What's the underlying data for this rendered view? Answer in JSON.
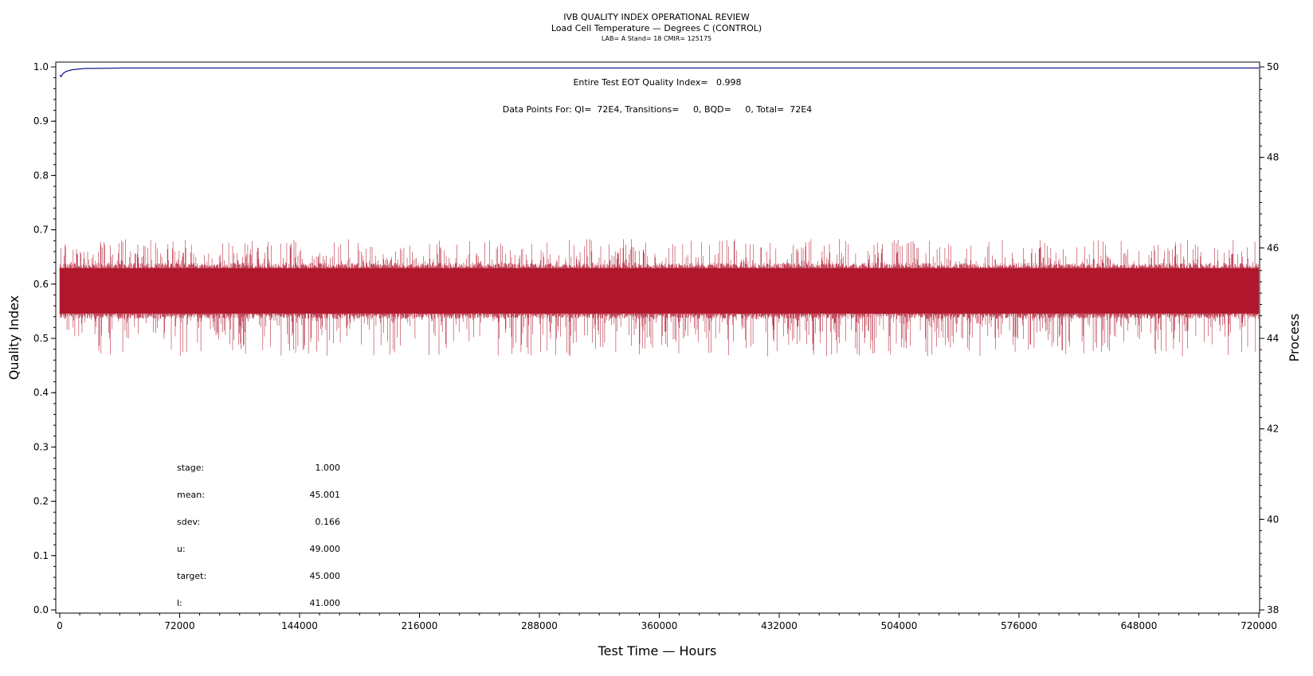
{
  "chart_data": {
    "type": "line",
    "title": "IVB QUALITY INDEX OPERATIONAL REVIEW",
    "subtitle": "Load Cell Temperature — Degrees C (CONTROL)",
    "subtitle2": "LAB= A Stand= 18 CMIR= 125175",
    "xlabel": "Test Time — Hours",
    "ylabel": "Quality Index",
    "y2label": "Process",
    "xlim": [
      0,
      720000
    ],
    "ylim": [
      0,
      1.0
    ],
    "y2lim": [
      38,
      50
    ],
    "x_ticks": [
      "0",
      "72000",
      "144000",
      "216000",
      "288000",
      "360000",
      "432000",
      "504000",
      "576000",
      "648000",
      "720000"
    ],
    "y_ticks": [
      "0.0",
      "0.1",
      "0.2",
      "0.3",
      "0.4",
      "0.5",
      "0.6",
      "0.7",
      "0.8",
      "0.9",
      "1.0"
    ],
    "y2_ticks": [
      "38",
      "40",
      "42",
      "44",
      "46",
      "48",
      "50"
    ],
    "grid": false,
    "series": [
      {
        "axis": "left",
        "color": "#1a1a8c",
        "x": [
          0,
          800,
          2000,
          4000,
          8000,
          15000,
          40000,
          100000,
          720000
        ],
        "y": [
          0.985,
          0.982,
          0.988,
          0.992,
          0.995,
          0.997,
          0.998,
          0.998,
          0.998
        ]
      },
      {
        "axis": "right",
        "color": "#b0172d",
        "style": "dense process trace",
        "center": 45.0,
        "band_low": 44.55,
        "band_high": 45.55,
        "spike_min": 43.6,
        "spike_max": 46.2,
        "x_range": [
          0,
          720000
        ]
      }
    ],
    "annotations": {
      "quality_index": "Entire Test EOT Quality Index=   0.998",
      "data_points": "Data Points For: QI=  72E4, Transitions=     0, BQD=     0, Total=  72E4"
    },
    "stats": [
      {
        "label": "stage:",
        "value": "1.000"
      },
      {
        "label": "mean:",
        "value": "45.001"
      },
      {
        "label": "sdev:",
        "value": "0.166"
      },
      {
        "label": "u:",
        "value": "49.000"
      },
      {
        "label": "target:",
        "value": "45.000"
      },
      {
        "label": "l:",
        "value": "41.000"
      }
    ]
  }
}
